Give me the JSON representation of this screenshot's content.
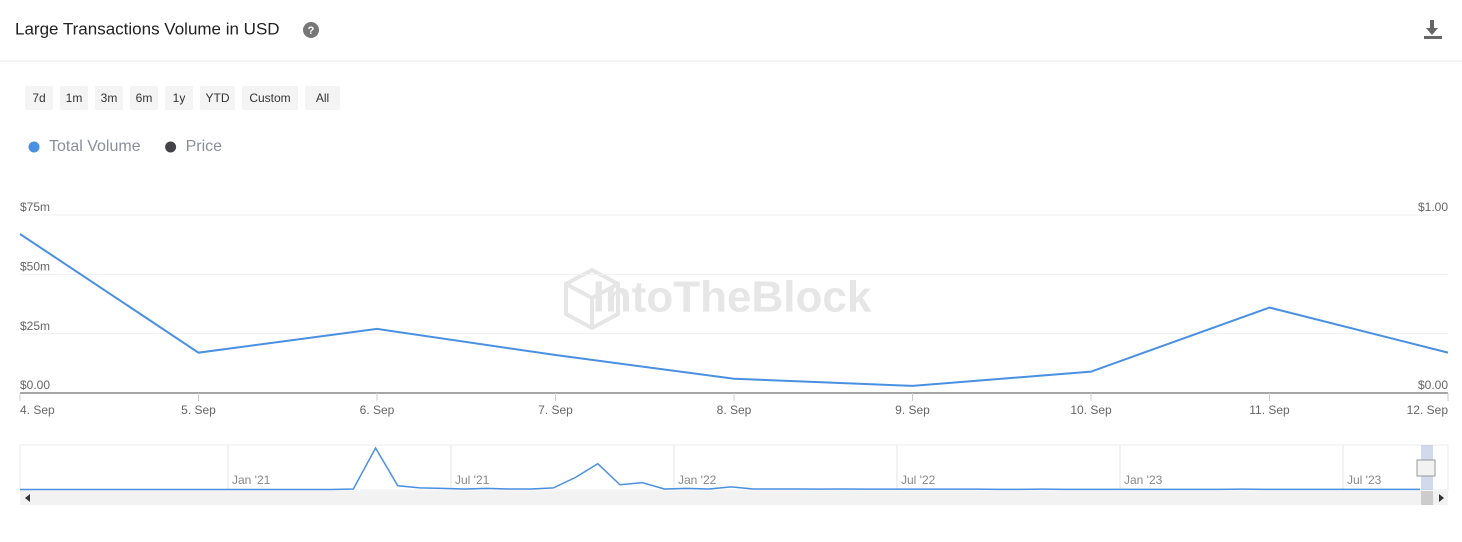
{
  "header": {
    "title": "Large Transactions Volume in USD"
  },
  "range_buttons": [
    "7d",
    "1m",
    "3m",
    "6m",
    "1y",
    "YTD",
    "Custom",
    "All"
  ],
  "watermark": "IntoTheBlock",
  "chart_data": {
    "type": "line",
    "categories": [
      "4. Sep",
      "5. Sep",
      "6. Sep",
      "7. Sep",
      "8. Sep",
      "9. Sep",
      "10. Sep",
      "11. Sep",
      "12. Sep"
    ],
    "series": [
      {
        "name": "Total Volume",
        "color": "#4a90e2",
        "values": [
          67,
          17,
          27,
          16,
          6,
          3,
          9,
          36,
          17
        ]
      },
      {
        "name": "Price",
        "color": "#434348",
        "axis": "y2",
        "values": [
          null,
          null,
          null,
          null,
          null,
          null,
          null,
          null,
          null
        ]
      }
    ],
    "ylim": [
      0,
      75
    ],
    "yticks": [
      {
        "value": 0,
        "label": "$0.00"
      },
      {
        "value": 25,
        "label": "$25m"
      },
      {
        "value": 50,
        "label": "$50m"
      },
      {
        "value": 75,
        "label": "$75m"
      }
    ],
    "y2lim": [
      0,
      1
    ],
    "y2ticks": [
      {
        "value": 0,
        "label": "$0.00"
      },
      {
        "value": 1,
        "label": "$1.00"
      }
    ],
    "grid": true,
    "navigator": {
      "x_labels": [
        "Jan '21",
        "Jul '21",
        "Jan '22",
        "Jul '22",
        "Jan '23",
        "Jul '23"
      ],
      "values": [
        0.5,
        0.5,
        0.5,
        0.5,
        0.5,
        0.5,
        0.5,
        0.5,
        0.5,
        0.5,
        0.5,
        0.5,
        0.5,
        0.5,
        0.5,
        1,
        40,
        4,
        2,
        1.5,
        1,
        1.5,
        1,
        1,
        2,
        12,
        25,
        5,
        7,
        1,
        1.5,
        1,
        3,
        1,
        1,
        1,
        0.8,
        1,
        0.8,
        0.8,
        0.8,
        0.8,
        0.8,
        0.8,
        0.6,
        0.6,
        0.8,
        0.6,
        0.6,
        0.6,
        0.6,
        0.6,
        0.6,
        0.6,
        0.6,
        0.8,
        0.6,
        0.6,
        0.6,
        0.6,
        0.6,
        0.6,
        0.6,
        0.6
      ]
    }
  }
}
